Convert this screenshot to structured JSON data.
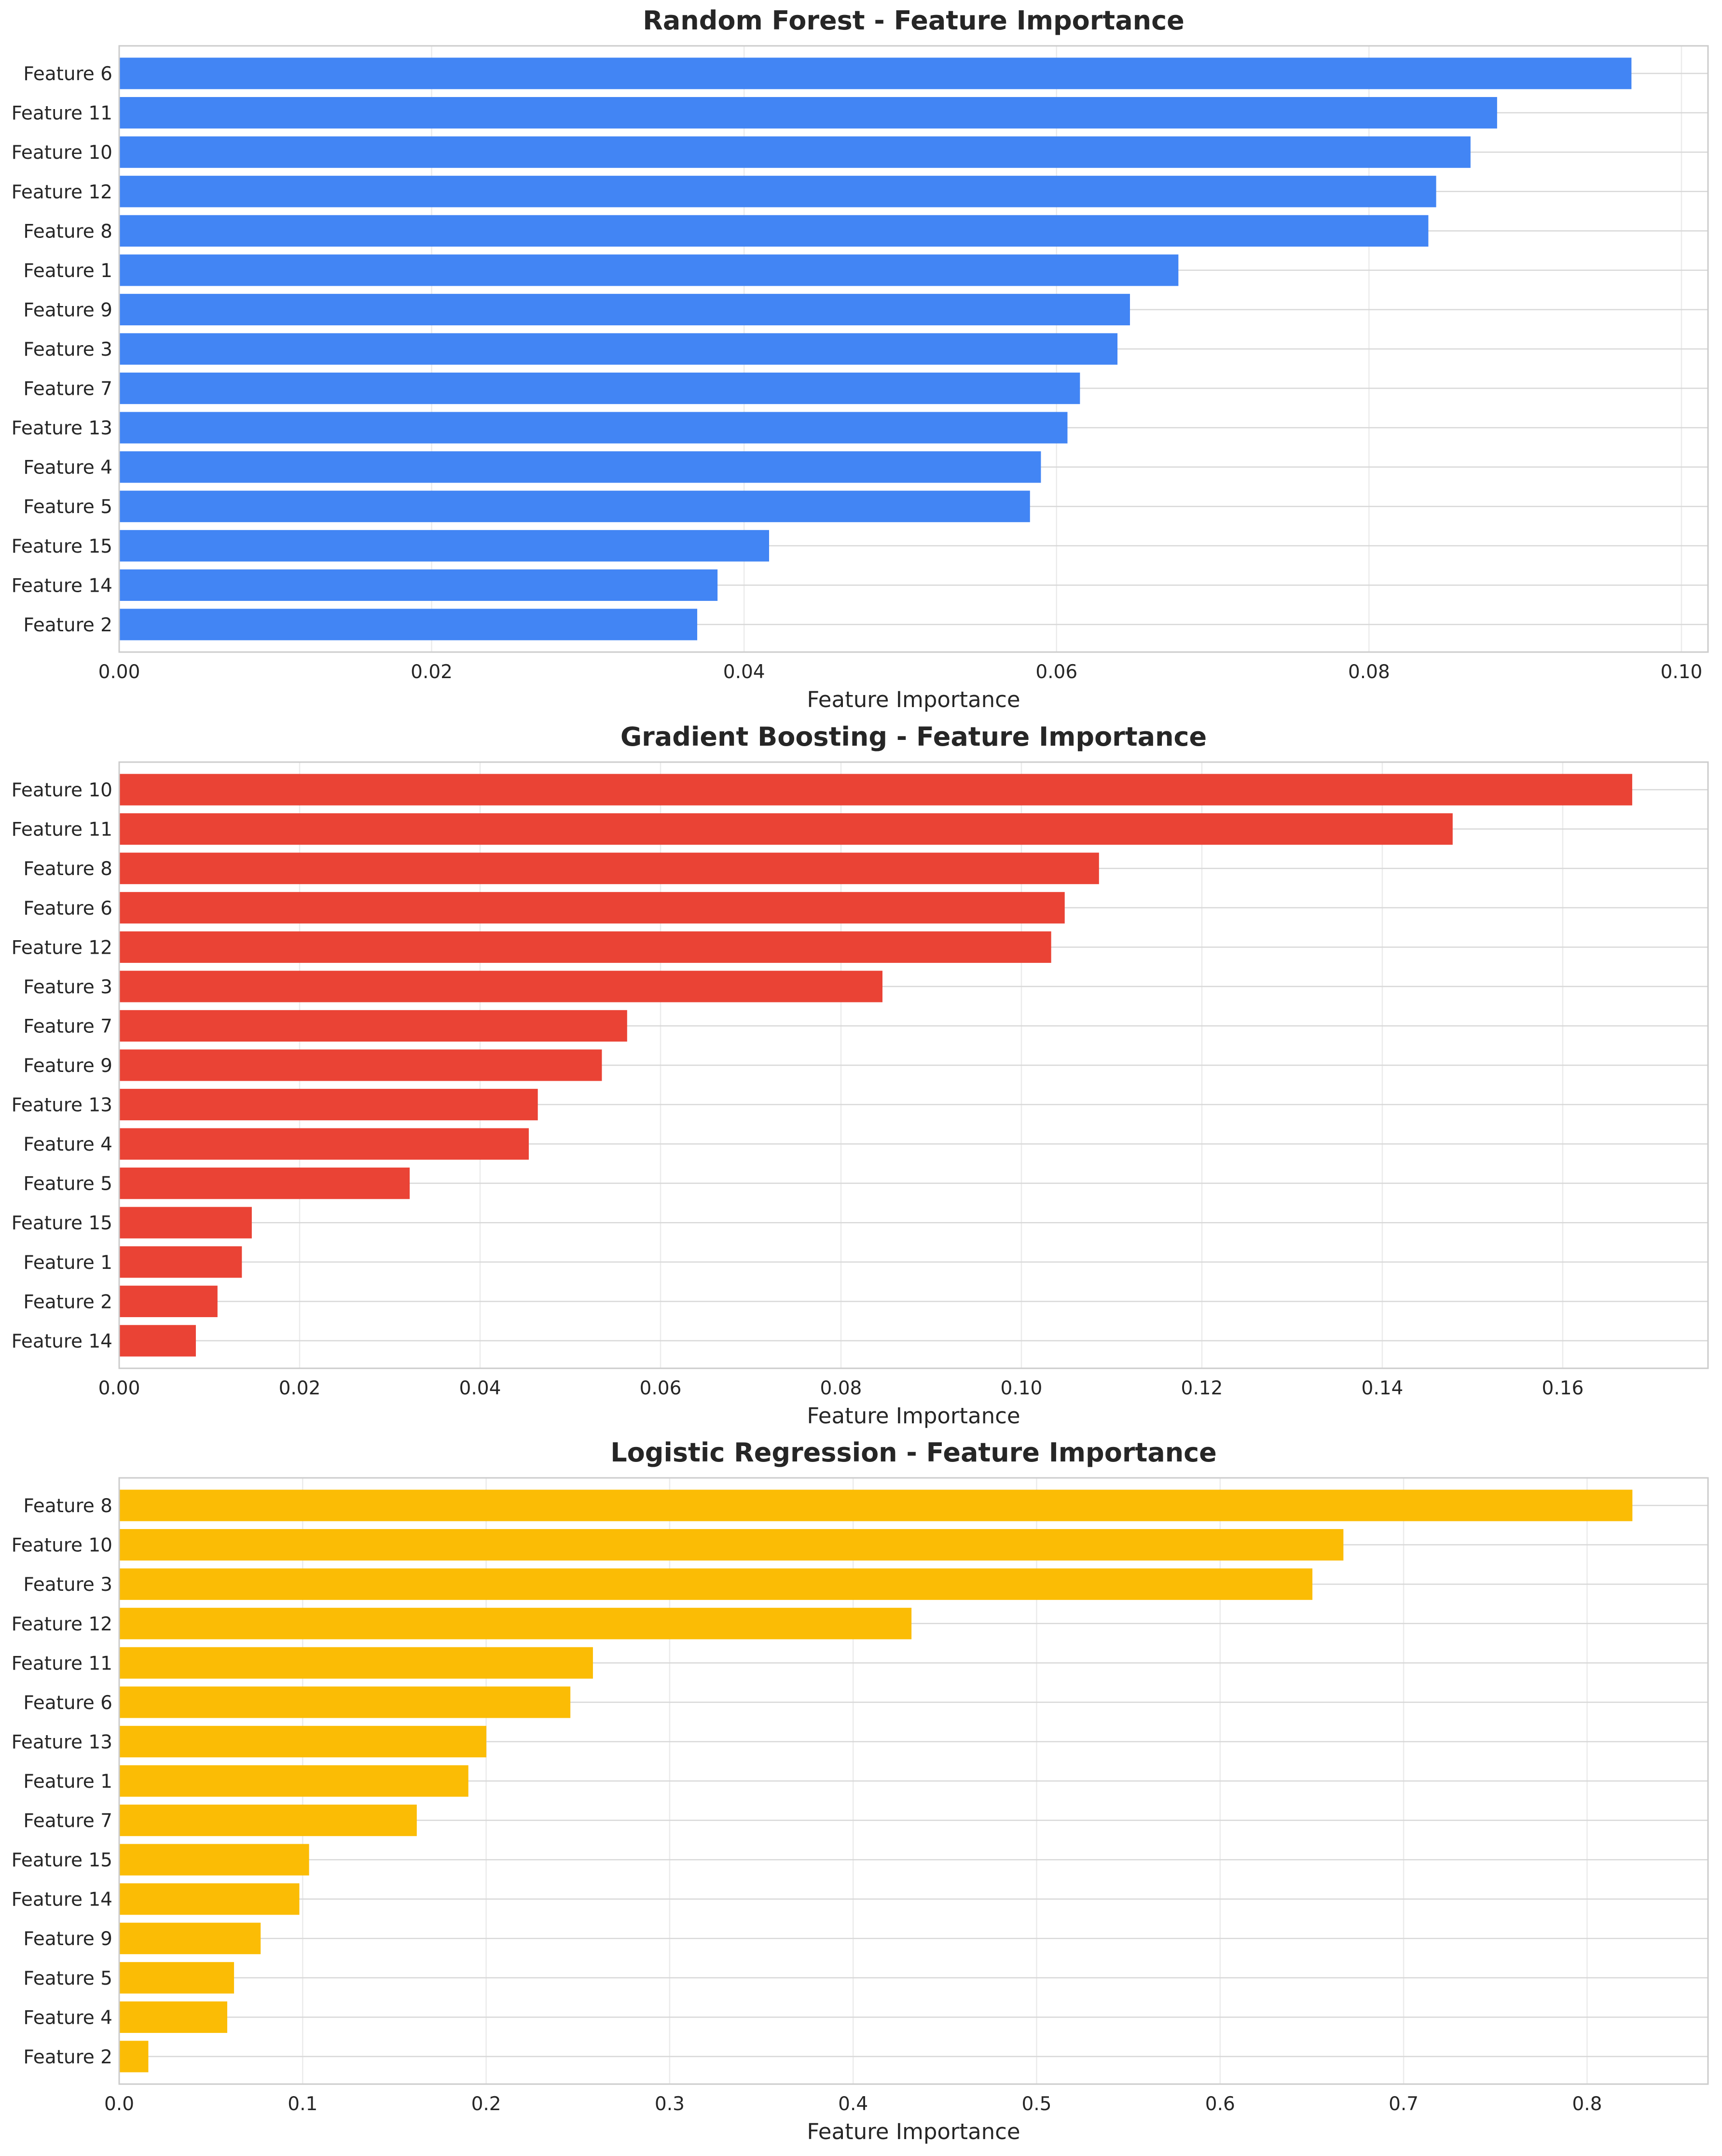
{
  "chart_data": [
    {
      "type": "bar",
      "orientation": "horizontal",
      "title": "Random Forest - Feature Importance",
      "xlabel": "Feature Importance",
      "ylabel": "",
      "xlim": [
        0,
        0.1017
      ],
      "xticks": [
        0.0,
        0.02,
        0.04,
        0.06,
        0.08,
        0.1
      ],
      "xtick_labels": [
        "0.00",
        "0.02",
        "0.04",
        "0.06",
        "0.08",
        "0.10"
      ],
      "grid": true,
      "color": "#4285F4",
      "categories": [
        "Feature 6",
        "Feature 11",
        "Feature 10",
        "Feature 12",
        "Feature 8",
        "Feature 1",
        "Feature 9",
        "Feature 3",
        "Feature 7",
        "Feature 13",
        "Feature 4",
        "Feature 5",
        "Feature 15",
        "Feature 14",
        "Feature 2"
      ],
      "values": [
        0.0968,
        0.0882,
        0.0865,
        0.0843,
        0.0838,
        0.0678,
        0.0647,
        0.0639,
        0.0615,
        0.0607,
        0.059,
        0.0583,
        0.0416,
        0.0383,
        0.037
      ]
    },
    {
      "type": "bar",
      "orientation": "horizontal",
      "title": "Gradient Boosting - Feature Importance",
      "xlabel": "Feature Importance",
      "ylabel": "",
      "xlim": [
        0,
        0.1761
      ],
      "xticks": [
        0.0,
        0.02,
        0.04,
        0.06,
        0.08,
        0.1,
        0.12,
        0.14,
        0.16
      ],
      "xtick_labels": [
        "0.00",
        "0.02",
        "0.04",
        "0.06",
        "0.08",
        "0.10",
        "0.12",
        "0.14",
        "0.16"
      ],
      "grid": true,
      "color": "#EA4335",
      "categories": [
        "Feature 10",
        "Feature 11",
        "Feature 8",
        "Feature 6",
        "Feature 12",
        "Feature 3",
        "Feature 7",
        "Feature 9",
        "Feature 13",
        "Feature 4",
        "Feature 5",
        "Feature 15",
        "Feature 1",
        "Feature 2",
        "Feature 14"
      ],
      "values": [
        0.1677,
        0.1478,
        0.1086,
        0.1048,
        0.1033,
        0.0846,
        0.0563,
        0.0535,
        0.0464,
        0.0454,
        0.0322,
        0.0147,
        0.0136,
        0.0109,
        0.0085
      ]
    },
    {
      "type": "bar",
      "orientation": "horizontal",
      "title": "Logistic Regression - Feature Importance",
      "xlabel": "Feature Importance",
      "ylabel": "",
      "xlim": [
        0,
        0.8659
      ],
      "xticks": [
        0.0,
        0.1,
        0.2,
        0.3,
        0.4,
        0.5,
        0.6,
        0.7,
        0.8
      ],
      "xtick_labels": [
        "0.0",
        "0.1",
        "0.2",
        "0.3",
        "0.4",
        "0.5",
        "0.6",
        "0.7",
        "0.8"
      ],
      "grid": true,
      "color": "#FBBC05",
      "categories": [
        "Feature 8",
        "Feature 10",
        "Feature 3",
        "Feature 12",
        "Feature 11",
        "Feature 6",
        "Feature 13",
        "Feature 1",
        "Feature 7",
        "Feature 15",
        "Feature 14",
        "Feature 9",
        "Feature 5",
        "Feature 4",
        "Feature 2"
      ],
      "values": [
        0.8247,
        0.6672,
        0.6503,
        0.4318,
        0.2582,
        0.2459,
        0.2001,
        0.1903,
        0.1622,
        0.1035,
        0.0982,
        0.0771,
        0.0626,
        0.0589,
        0.0159
      ]
    }
  ]
}
